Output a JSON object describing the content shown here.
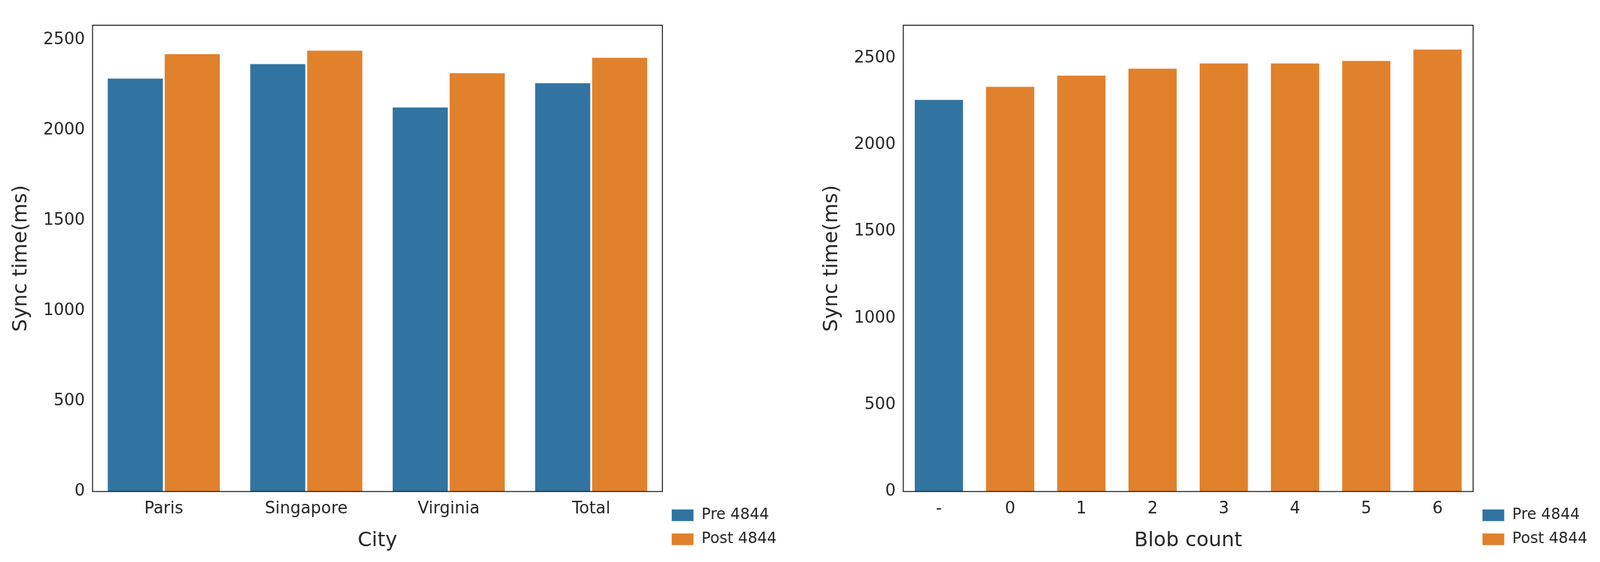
{
  "chart_data": [
    {
      "type": "bar",
      "x_label": "City",
      "y_label": "Sync time(ms)",
      "categories": [
        "Paris",
        "Singapore",
        "Virginia",
        "Total"
      ],
      "series": [
        {
          "name": "Pre 4844",
          "color": "#3274a1",
          "values": [
            2290,
            2370,
            2130,
            2265
          ]
        },
        {
          "name": "Post 4844",
          "color": "#e1812c",
          "values": [
            2425,
            2445,
            2320,
            2405
          ]
        }
      ],
      "ylim": [
        0,
        2580
      ],
      "yticks": [
        0,
        500,
        1000,
        1500,
        2000,
        2500
      ],
      "grid": false,
      "legend": "lower right"
    },
    {
      "type": "bar",
      "x_label": "Blob count",
      "y_label": "Sync time(ms)",
      "categories": [
        "-",
        "0",
        "1",
        "2",
        "3",
        "4",
        "5",
        "6"
      ],
      "series": [
        {
          "name": "Pre 4844",
          "color": "#3274a1",
          "values": [
            2265,
            null,
            null,
            null,
            null,
            null,
            null,
            null
          ]
        },
        {
          "name": "Post 4844",
          "color": "#e1812c",
          "values": [
            null,
            2340,
            2405,
            2445,
            2475,
            2475,
            2490,
            2555
          ]
        }
      ],
      "ylim": [
        0,
        2690
      ],
      "yticks": [
        0,
        500,
        1000,
        1500,
        2000,
        2500
      ],
      "grid": false,
      "legend": "lower right"
    }
  ]
}
